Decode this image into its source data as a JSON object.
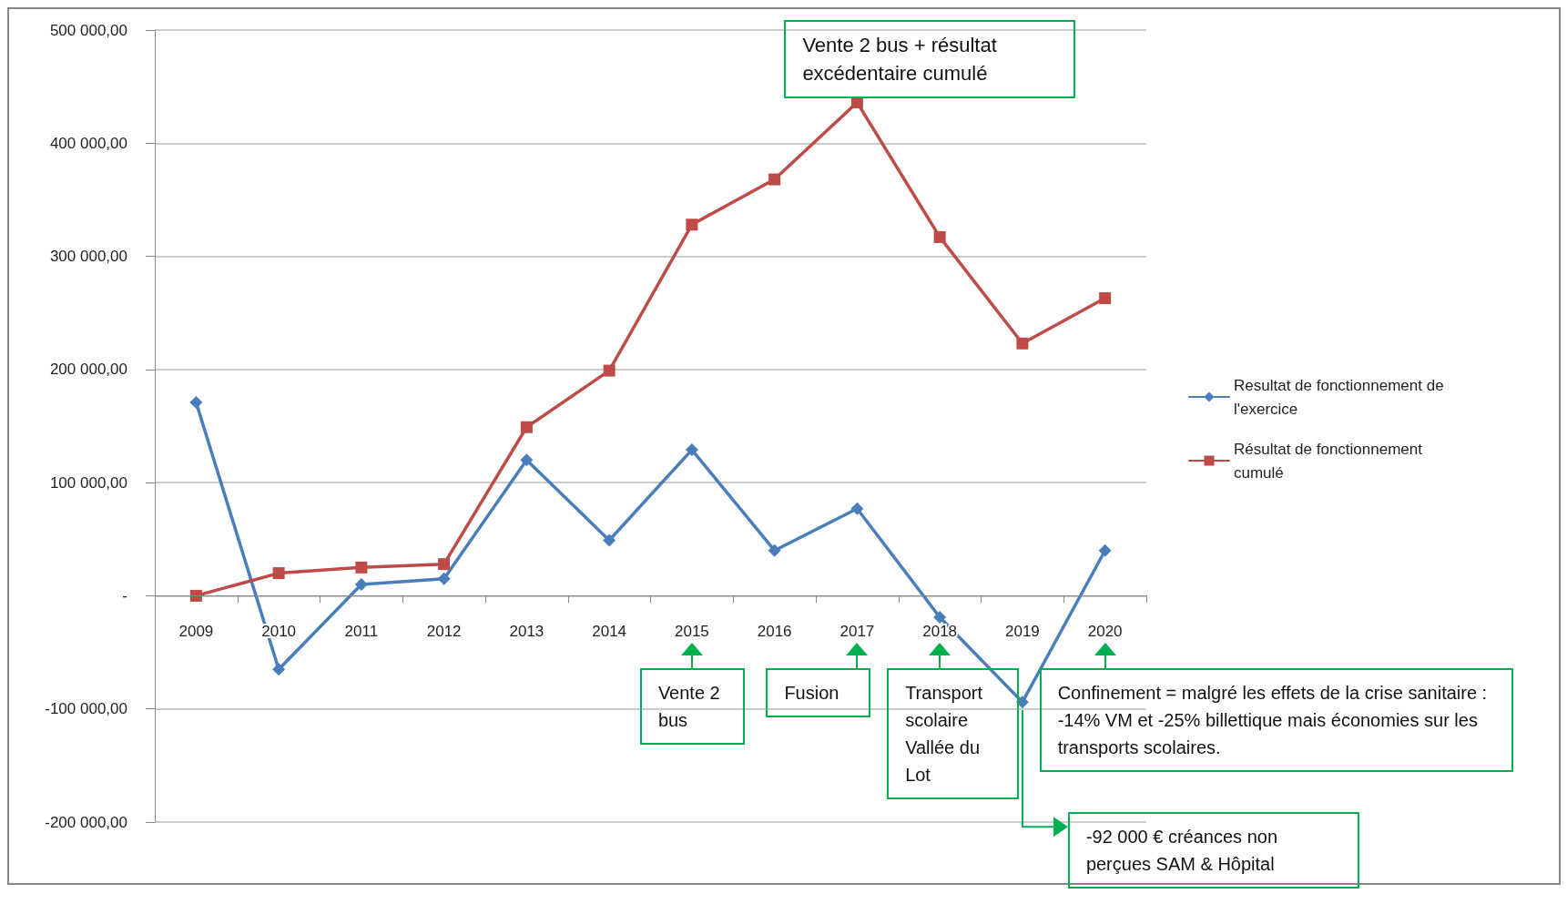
{
  "chart_data": {
    "type": "line",
    "categories": [
      "2009",
      "2010",
      "2011",
      "2012",
      "2013",
      "2014",
      "2015",
      "2016",
      "2017",
      "2018",
      "2019",
      "2020"
    ],
    "series": [
      {
        "name": "Resultat de fonctionnement de l'exercice",
        "color": "#4a7ebb",
        "marker": "diamond",
        "values": [
          171000,
          -65000,
          10000,
          15000,
          120000,
          49000,
          129000,
          40000,
          77000,
          -19000,
          -94000,
          40000
        ]
      },
      {
        "name": "Résultat de fonctionnement cumulé",
        "color": "#be4b48",
        "marker": "square",
        "values": [
          0,
          20000,
          25000,
          28000,
          149000,
          199000,
          328000,
          368000,
          436000,
          317000,
          223000,
          263000
        ]
      }
    ],
    "ylim": [
      -200000,
      500000
    ],
    "yticks": [
      {
        "value": -200000,
        "label": "-200 000,00"
      },
      {
        "value": -100000,
        "label": "-100 000,00"
      },
      {
        "value": 0,
        "label": "-"
      },
      {
        "value": 100000,
        "label": "100 000,00"
      },
      {
        "value": 200000,
        "label": "200 000,00"
      },
      {
        "value": 300000,
        "label": "300 000,00"
      },
      {
        "value": 400000,
        "label": "400 000,00"
      },
      {
        "value": 500000,
        "label": "500 000,00"
      }
    ],
    "grid": "y",
    "legend": "right",
    "line_style": "solid",
    "annotations": [
      "Vente 2 bus + résultat excédentaire cumulé",
      "Vente 2 bus",
      "Fusion",
      "Transport scolaire Vallée du Lot",
      "Confinement = malgré les effets de la crise sanitaire : -14% VM et -25% billettique mais économies sur les transports scolaires.",
      "-92 000 € créances non perçues SAM & Hôpital"
    ]
  }
}
